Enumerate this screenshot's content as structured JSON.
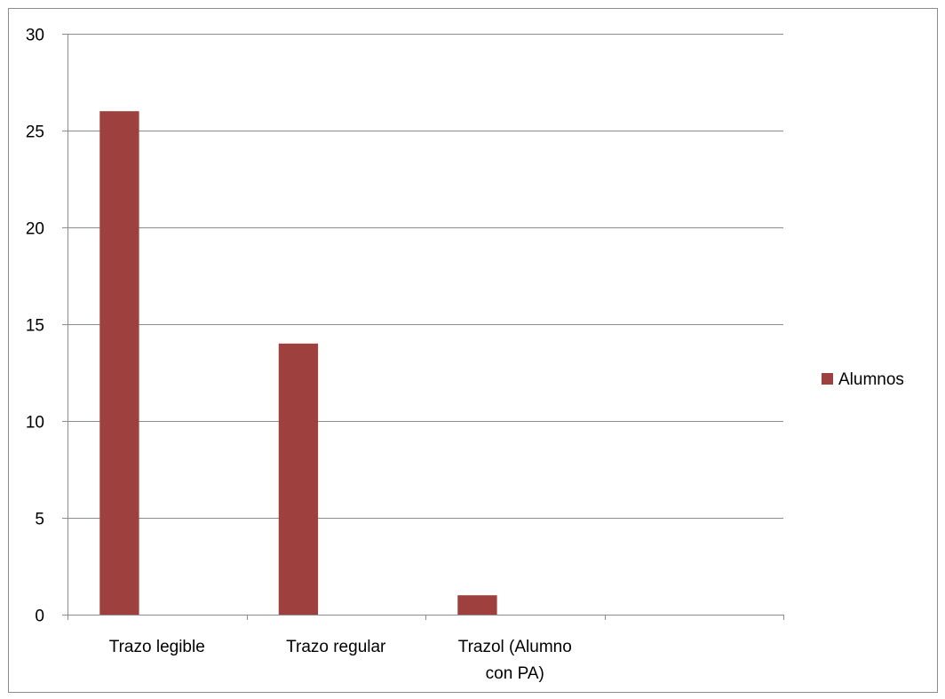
{
  "chart_data": {
    "type": "bar",
    "categories": [
      "Trazo legible",
      "Trazo regular",
      "Trazol (Alumno con PA)",
      ""
    ],
    "category_label_lines": [
      [
        "Trazo legible"
      ],
      [
        "Trazo regular"
      ],
      [
        "Trazol (Alumno",
        "con PA)"
      ],
      []
    ],
    "series": [
      {
        "name": "Alumnos",
        "values": [
          26,
          14,
          1,
          null
        ],
        "color": "#9e413e"
      }
    ],
    "ylim": [
      0,
      30
    ],
    "yticks": [
      0,
      5,
      10,
      15,
      20,
      25,
      30
    ],
    "grid": true,
    "legend_position": "right",
    "title": "",
    "xlabel": "",
    "ylabel": "",
    "colors": {
      "gridline": "#8c8c8c",
      "axis": "#8c8c8c",
      "text": "#000000"
    }
  },
  "legend": {
    "label": "Alumnos"
  }
}
